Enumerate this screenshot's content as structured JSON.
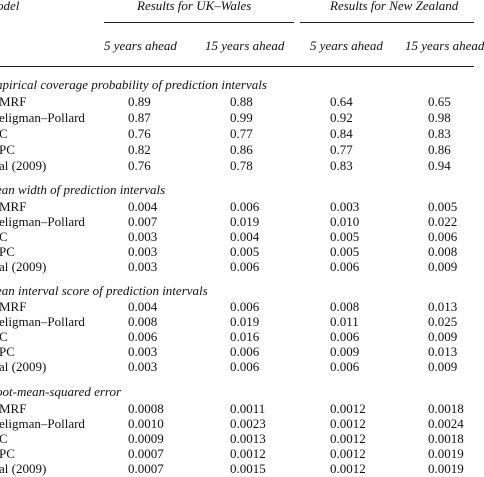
{
  "header": {
    "model": "odel",
    "uk_group": "Results for UK–Wales",
    "nz_group": "Results for New Zealand",
    "columns": [
      "5 years ahead",
      "15 years ahead",
      "5 years ahead",
      "15 years ahead"
    ]
  },
  "sections": [
    {
      "title": "npirical coverage probability of prediction intervals",
      "rows": [
        {
          "model": "MRF",
          "values": [
            "0.89",
            "0.88",
            "0.64",
            "0.65"
          ]
        },
        {
          "model": "eligman–Pollard",
          "values": [
            "0.87",
            "0.99",
            "0.92",
            "0.98"
          ]
        },
        {
          "model": "C",
          "values": [
            "0.76",
            "0.77",
            "0.84",
            "0.83"
          ]
        },
        {
          "model": "PC",
          "values": [
            "0.82",
            "0.86",
            "0.77",
            "0.86"
          ]
        },
        {
          "model": "al (2009)",
          "values": [
            "0.76",
            "0.78",
            "0.83",
            "0.94"
          ]
        }
      ]
    },
    {
      "title": "ean width of prediction intervals",
      "rows": [
        {
          "model": "MRF",
          "values": [
            "0.004",
            "0.006",
            "0.003",
            "0.005"
          ]
        },
        {
          "model": "eligman–Pollard",
          "values": [
            "0.007",
            "0.019",
            "0.010",
            "0.022"
          ]
        },
        {
          "model": "C",
          "values": [
            "0.003",
            "0.004",
            "0.005",
            "0.006"
          ]
        },
        {
          "model": "PC",
          "values": [
            "0.003",
            "0.005",
            "0.005",
            "0.008"
          ]
        },
        {
          "model": "al (2009)",
          "values": [
            "0.003",
            "0.006",
            "0.006",
            "0.009"
          ]
        }
      ]
    },
    {
      "title": "ean interval score of prediction intervals",
      "rows": [
        {
          "model": "MRF",
          "values": [
            "0.004",
            "0.006",
            "0.008",
            "0.013"
          ]
        },
        {
          "model": "eligman–Pollard",
          "values": [
            "0.008",
            "0.019",
            "0.011",
            "0.025"
          ]
        },
        {
          "model": "C",
          "values": [
            "0.006",
            "0.016",
            "0.006",
            "0.009"
          ]
        },
        {
          "model": "PC",
          "values": [
            "0.003",
            "0.006",
            "0.009",
            "0.013"
          ]
        },
        {
          "model": "al (2009)",
          "values": [
            "0.003",
            "0.006",
            "0.006",
            "0.009"
          ]
        }
      ]
    },
    {
      "title": "oot-mean-squared error",
      "rows": [
        {
          "model": "MRF",
          "values": [
            "0.0008",
            "0.0011",
            "0.0012",
            "0.0018"
          ]
        },
        {
          "model": "eligman–Pollard",
          "values": [
            "0.0010",
            "0.0023",
            "0.0012",
            "0.0024"
          ]
        },
        {
          "model": "C",
          "values": [
            "0.0009",
            "0.0013",
            "0.0012",
            "0.0018"
          ]
        },
        {
          "model": "PC",
          "values": [
            "0.0007",
            "0.0012",
            "0.0012",
            "0.0019"
          ]
        },
        {
          "model": "al (2009)",
          "values": [
            "0.0007",
            "0.0015",
            "0.0012",
            "0.0019"
          ]
        }
      ]
    }
  ]
}
